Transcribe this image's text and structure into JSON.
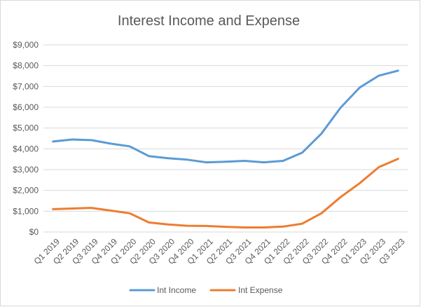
{
  "chart_data": {
    "type": "line",
    "title": "Interest Income and Expense",
    "categories": [
      "Q1 2019",
      "Q2 2019",
      "Q3 2019",
      "Q4 2019",
      "Q1 2020",
      "Q2 2020",
      "Q3 2020",
      "Q4 2020",
      "Q1 2021",
      "Q2 2021",
      "Q3 2021",
      "Q4 2021",
      "Q1 2022",
      "Q2 2022",
      "Q3 2022",
      "Q4 2022",
      "Q1 2023",
      "Q2 2023",
      "Q3 2023"
    ],
    "series": [
      {
        "name": "Int Income",
        "color": "#5b9bd5",
        "values": [
          4350,
          4450,
          4420,
          4250,
          4120,
          3650,
          3550,
          3480,
          3350,
          3380,
          3420,
          3350,
          3420,
          3820,
          4730,
          5980,
          6950,
          7520,
          7760
        ]
      },
      {
        "name": "Int Expense",
        "color": "#ed7d31",
        "values": [
          1100,
          1130,
          1160,
          1030,
          900,
          460,
          360,
          300,
          290,
          250,
          220,
          220,
          260,
          400,
          900,
          1680,
          2350,
          3120,
          3520
        ]
      }
    ],
    "yticks": [
      0,
      1000,
      2000,
      3000,
      4000,
      5000,
      6000,
      7000,
      8000,
      9000
    ],
    "ytick_labels": [
      "$0",
      "$1,000",
      "$2,000",
      "$3,000",
      "$4,000",
      "$5,000",
      "$6,000",
      "$7,000",
      "$8,000",
      "$9,000"
    ],
    "ylim": [
      0,
      9000
    ],
    "grid": true,
    "legend": "bottom"
  }
}
